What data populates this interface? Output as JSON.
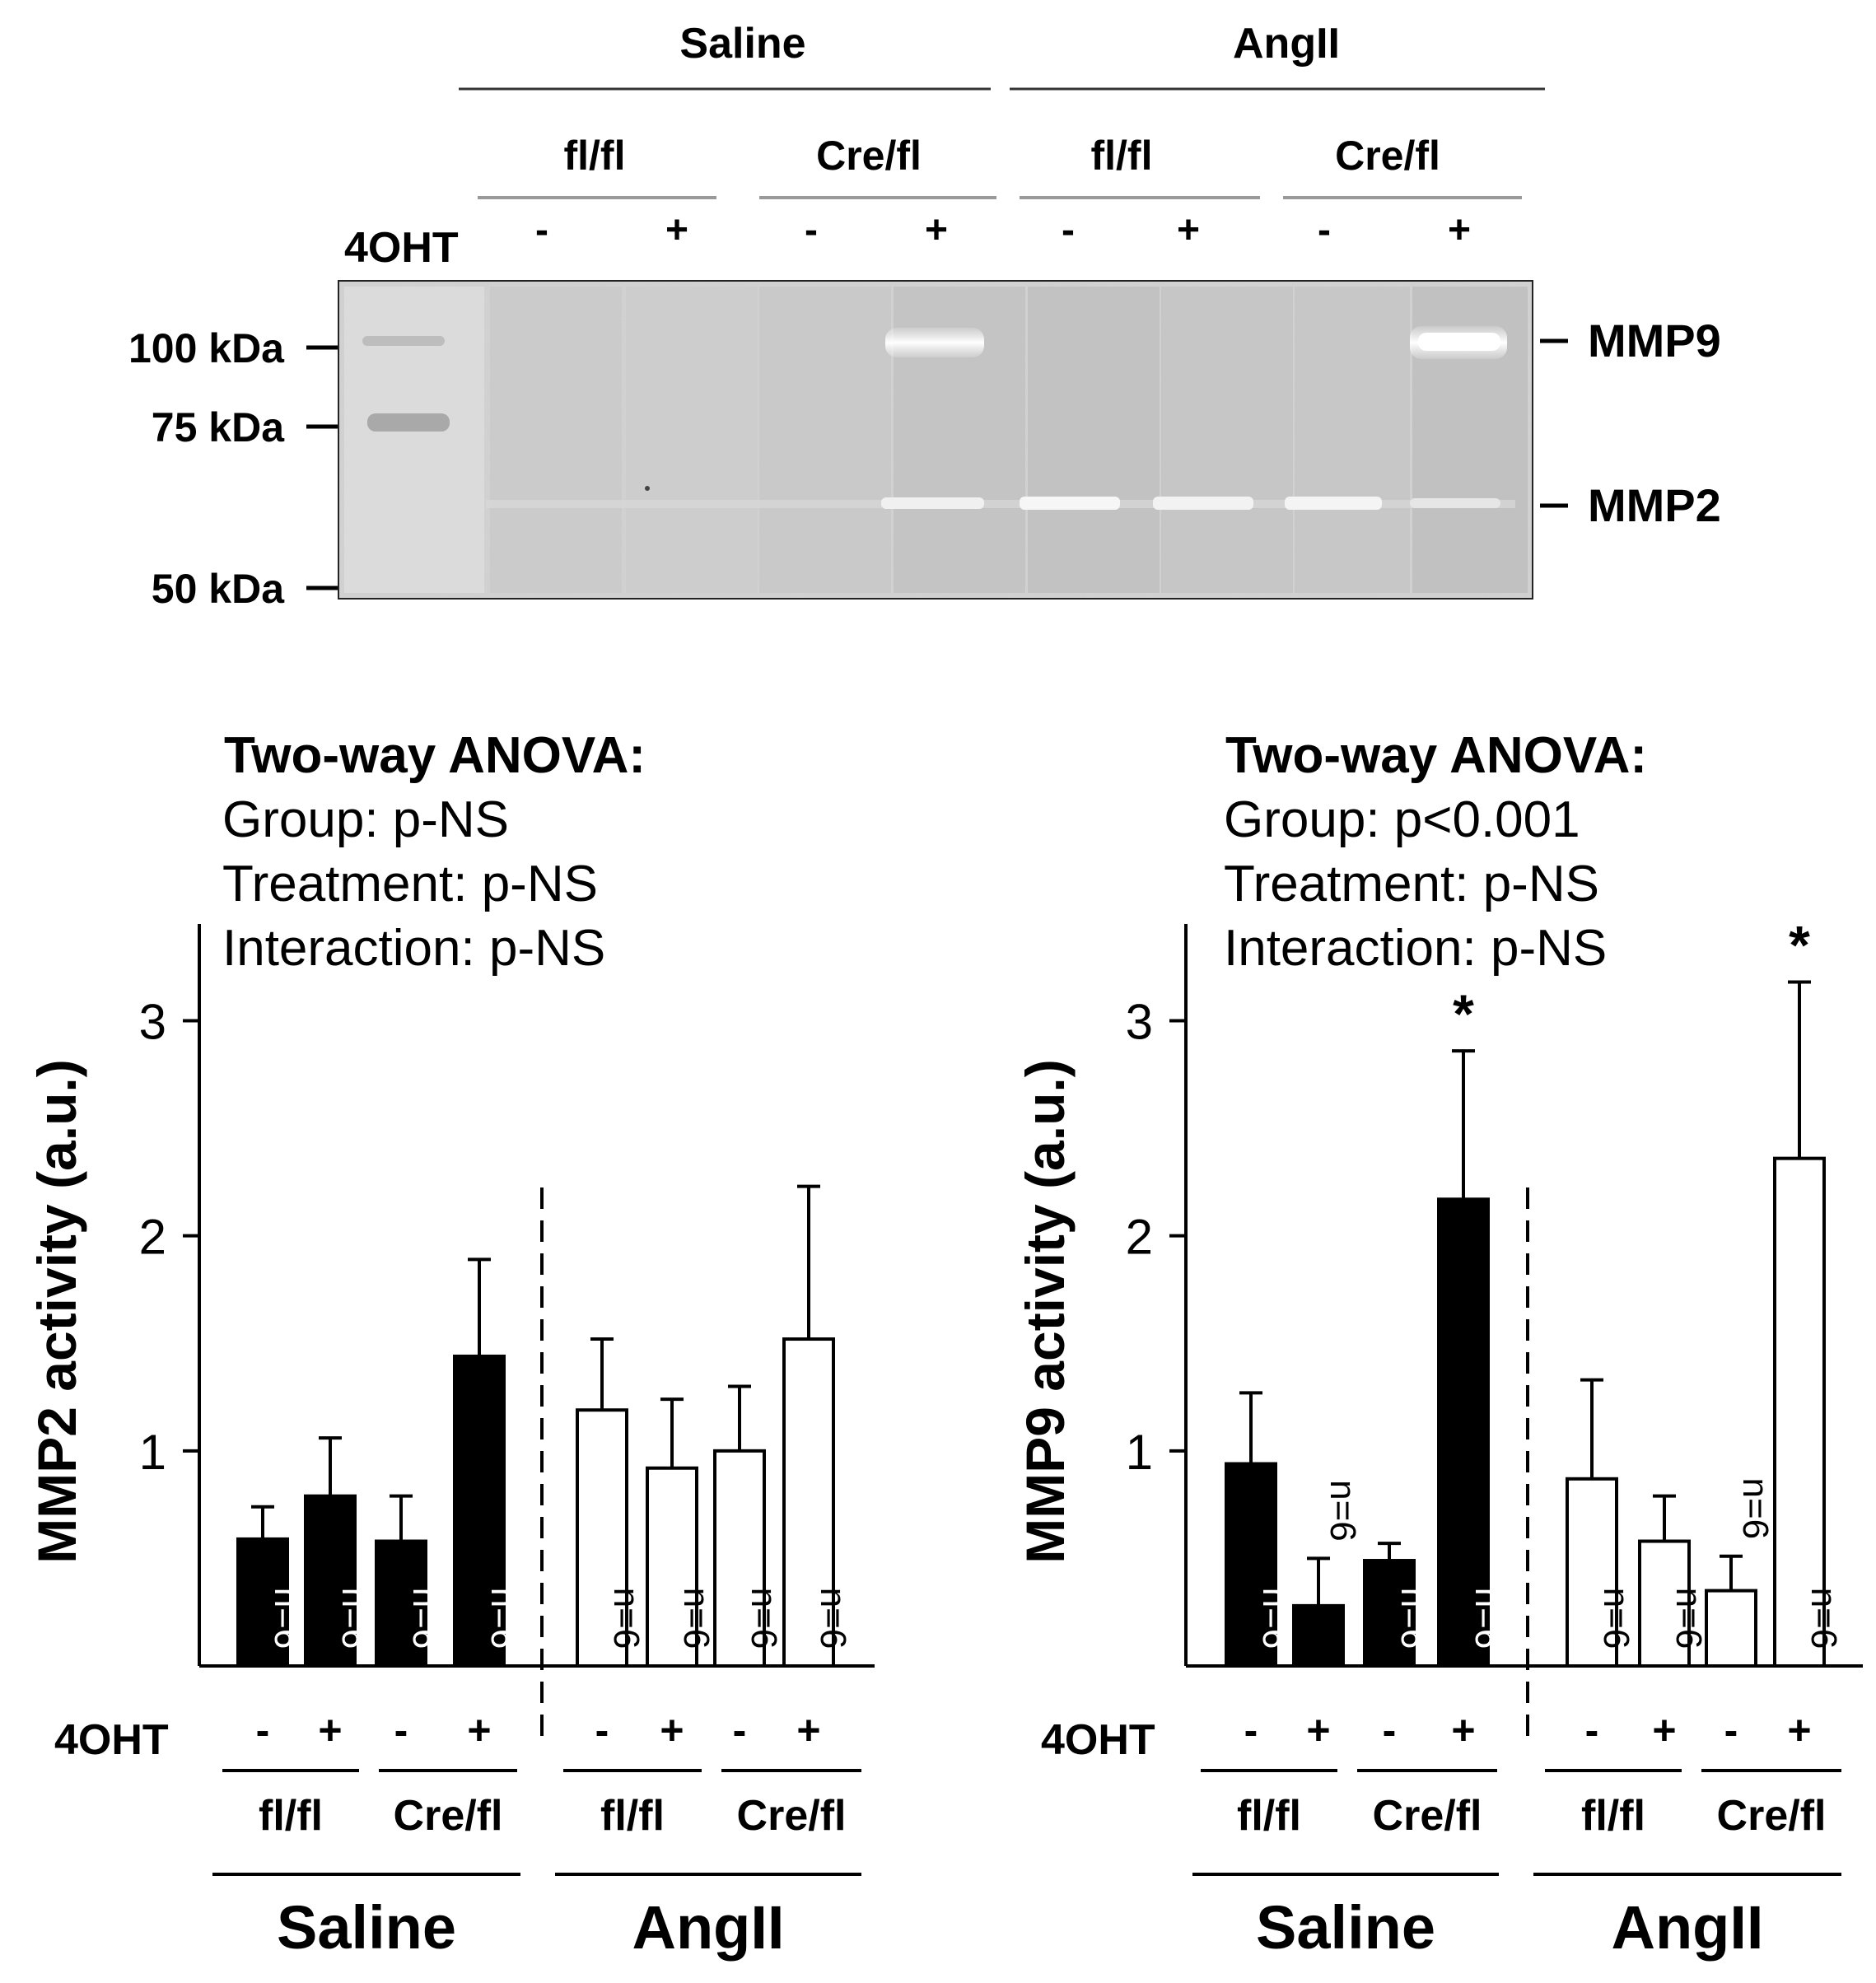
{
  "blot": {
    "header_groups": [
      "Saline",
      "AngII"
    ],
    "genotypes": [
      "fl/fl",
      "Cre/fl",
      "fl/fl",
      "Cre/fl"
    ],
    "treatment_label": "4OHT",
    "treatment_signs": [
      "-",
      "+",
      "-",
      "+",
      "-",
      "+",
      "-",
      "+"
    ],
    "size_markers": [
      "100 kDa",
      "75 kDa",
      "50 kDa"
    ],
    "band_labels": [
      "MMP9",
      "MMP2"
    ]
  },
  "chart_data": [
    {
      "type": "bar",
      "stats": {
        "title": "Two-way ANOVA:",
        "lines": [
          "Group: p-NS",
          "Treatment: p-NS",
          "Interaction: p-NS"
        ]
      },
      "ylabel": "MMP2 activity (a.u.)",
      "yticks": [
        "1",
        "2",
        "3"
      ],
      "ylim": [
        0,
        3.45
      ],
      "treatment_label": "4OHT",
      "treatment_signs": [
        "-",
        "+",
        "-",
        "+",
        "-",
        "+",
        "-",
        "+"
      ],
      "genotypes": [
        "fl/fl",
        "Cre/fl",
        "fl/fl",
        "Cre/fl"
      ],
      "groups": [
        "Saline",
        "AngII"
      ],
      "bars": [
        {
          "value": 0.59,
          "error": 0.15,
          "fill": "#000000",
          "n": "n=6",
          "sig": ""
        },
        {
          "value": 0.79,
          "error": 0.27,
          "fill": "#000000",
          "n": "n=6",
          "sig": ""
        },
        {
          "value": 0.58,
          "error": 0.21,
          "fill": "#000000",
          "n": "n=6",
          "sig": ""
        },
        {
          "value": 1.44,
          "error": 0.45,
          "fill": "#000000",
          "n": "n=6",
          "sig": ""
        },
        {
          "value": 1.19,
          "error": 0.33,
          "fill": "#ffffff",
          "n": "n=6",
          "sig": ""
        },
        {
          "value": 0.92,
          "error": 0.32,
          "fill": "#ffffff",
          "n": "n=6",
          "sig": ""
        },
        {
          "value": 1.0,
          "error": 0.3,
          "fill": "#ffffff",
          "n": "n=6",
          "sig": ""
        },
        {
          "value": 1.52,
          "error": 0.71,
          "fill": "#ffffff",
          "n": "n=6",
          "sig": ""
        }
      ]
    },
    {
      "type": "bar",
      "stats": {
        "title": "Two-way ANOVA:",
        "lines": [
          "Group: p<0.001",
          "Treatment: p-NS",
          "Interaction: p-NS"
        ]
      },
      "ylabel": "MMP9 activity (a.u.)",
      "yticks": [
        "1",
        "2",
        "3"
      ],
      "ylim": [
        0,
        3.45
      ],
      "treatment_label": "4OHT",
      "treatment_signs": [
        "-",
        "+",
        "-",
        "+",
        "-",
        "+",
        "-",
        "+"
      ],
      "genotypes": [
        "fl/fl",
        "Cre/fl",
        "fl/fl",
        "Cre/fl"
      ],
      "groups": [
        "Saline",
        "AngII"
      ],
      "bars": [
        {
          "value": 0.94,
          "error": 0.33,
          "fill": "#000000",
          "n": "n=6",
          "sig": ""
        },
        {
          "value": 0.28,
          "error": 0.22,
          "fill": "#000000",
          "n": "n=6",
          "sig": ""
        },
        {
          "value": 0.49,
          "error": 0.08,
          "fill": "#000000",
          "n": "n=6",
          "sig": ""
        },
        {
          "value": 2.17,
          "error": 0.69,
          "fill": "#000000",
          "n": "n=6",
          "sig": "*"
        },
        {
          "value": 0.87,
          "error": 0.46,
          "fill": "#ffffff",
          "n": "n=6",
          "sig": ""
        },
        {
          "value": 0.58,
          "error": 0.21,
          "fill": "#ffffff",
          "n": "n=6",
          "sig": ""
        },
        {
          "value": 0.35,
          "error": 0.16,
          "fill": "#ffffff",
          "n": "n=6",
          "sig": ""
        },
        {
          "value": 2.36,
          "error": 0.82,
          "fill": "#ffffff",
          "n": "n=6",
          "sig": "*"
        }
      ]
    }
  ]
}
